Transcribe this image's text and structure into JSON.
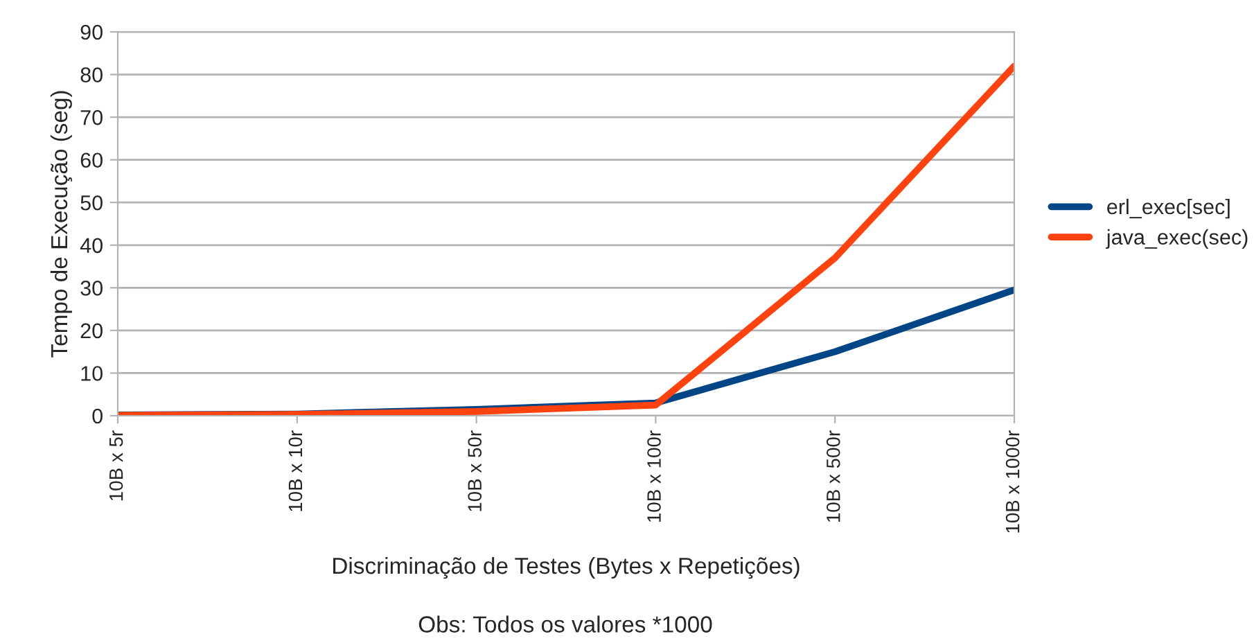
{
  "chart_data": {
    "type": "line",
    "xlabel": "Discriminação de Testes (Bytes x Repetições)",
    "ylabel": "Tempo de Execução (seg)",
    "annotations": [
      "Obs: Todos os valores *1000"
    ],
    "categories": [
      "10B x 5r",
      "10B x 10r",
      "10B x 50r",
      "10B x 100r",
      "10B x 500r",
      "10B x 1000r"
    ],
    "series": [
      {
        "name": "erl_exec[sec]",
        "color": "#004586",
        "values": [
          0.2,
          0.4,
          1.5,
          3,
          15,
          29.5
        ]
      },
      {
        "name": "java_exec(sec)",
        "color": "#ff420e",
        "values": [
          0.1,
          0.3,
          1,
          2.5,
          37,
          82
        ]
      }
    ],
    "ylim": [
      0,
      90
    ],
    "yticks": [
      0,
      10,
      20,
      30,
      40,
      50,
      60,
      70,
      80,
      90
    ],
    "grid": "y",
    "legend": "right",
    "marker": "none",
    "line_style": "solid"
  }
}
